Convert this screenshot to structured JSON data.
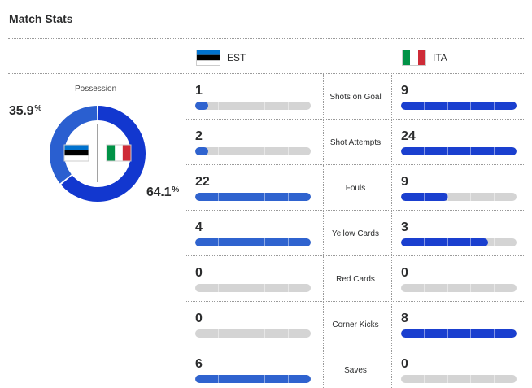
{
  "header": {
    "title": "Match Stats"
  },
  "teams": {
    "home": {
      "abbr": "EST",
      "flag": "estonia-flag",
      "flag_colors": [
        "#0072ce",
        "#000000",
        "#ffffff"
      ]
    },
    "away": {
      "abbr": "ITA",
      "flag": "italy-flag",
      "flag_colors": [
        "#009246",
        "#ffffff",
        "#ce2b37"
      ]
    }
  },
  "possession": {
    "label": "Possession",
    "home_pct": 35.9,
    "away_pct": 64.1,
    "home_text": "35.9",
    "away_text": "64.1",
    "unit": "%",
    "home_color": "#2a5fd0",
    "away_color": "#1237cf"
  },
  "colors": {
    "track": "#d4d4d4",
    "home_fill": "#2f63cf",
    "away_fill": "#1a3fcf"
  },
  "stats": [
    {
      "label": "Shots on Goal",
      "home": 1,
      "away": 9
    },
    {
      "label": "Shot Attempts",
      "home": 2,
      "away": 24
    },
    {
      "label": "Fouls",
      "home": 22,
      "away": 9
    },
    {
      "label": "Yellow Cards",
      "home": 4,
      "away": 3
    },
    {
      "label": "Red Cards",
      "home": 0,
      "away": 0
    },
    {
      "label": "Corner Kicks",
      "home": 0,
      "away": 8
    },
    {
      "label": "Saves",
      "home": 6,
      "away": 0
    }
  ]
}
